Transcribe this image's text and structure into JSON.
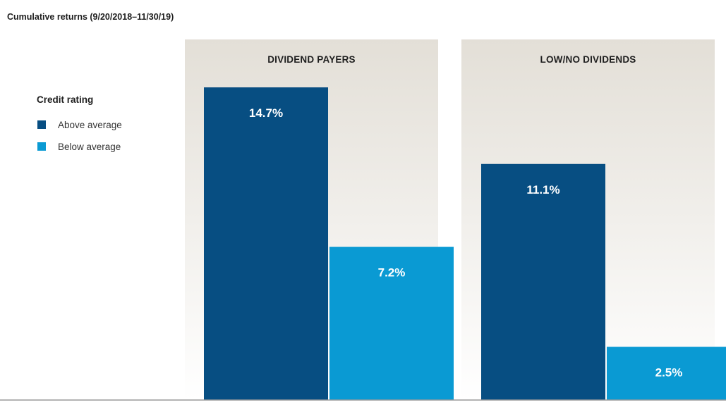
{
  "chart_data": {
    "type": "bar",
    "title": "Cumulative returns (9/20/2018–11/30/19)",
    "categories": [
      "DIVIDEND PAYERS",
      "LOW/NO DIVIDENDS"
    ],
    "legend_title": "Credit rating",
    "legend_position": "left",
    "series": [
      {
        "name": "Above average",
        "values": [
          14.7,
          11.1
        ],
        "labels": [
          "14.7%",
          "11.1%"
        ],
        "color": "#074e82"
      },
      {
        "name": "Below average",
        "values": [
          7.2,
          2.5
        ],
        "labels": [
          "7.2%",
          "2.5%"
        ],
        "color": "#0a9ad3"
      }
    ],
    "ylim": [
      0,
      16
    ],
    "grid": false,
    "panel_background": "#e8e5de"
  }
}
